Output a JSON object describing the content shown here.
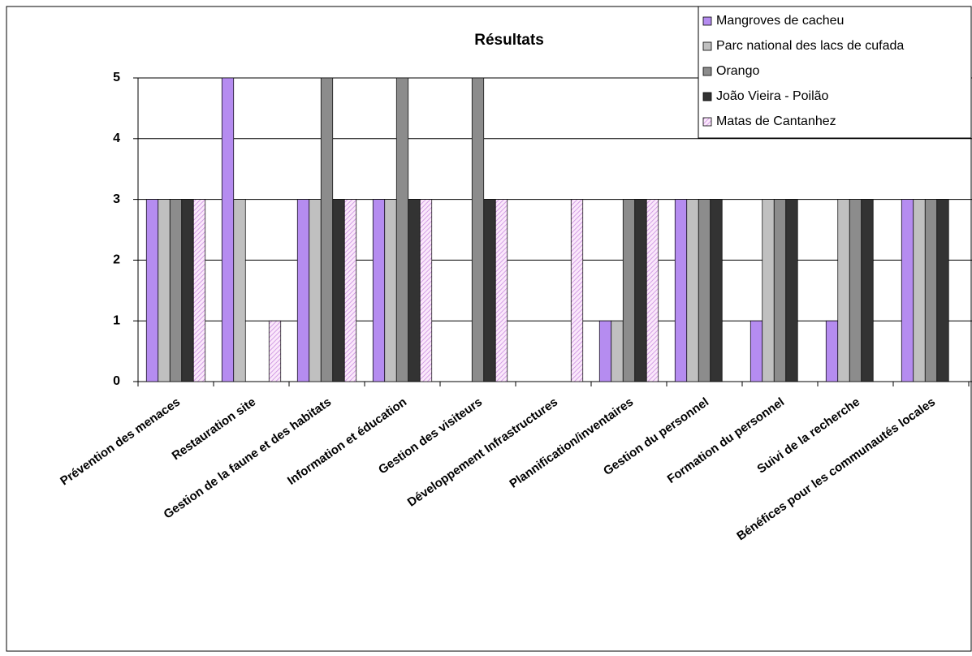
{
  "chart_data": {
    "type": "bar",
    "title": "Résultats",
    "categories": [
      "Prévention des menaces",
      "Restauration site",
      "Gestion de la faune et des habitats",
      "Information et éducation",
      "Gestion des visiteurs",
      "Développement Infrastructures",
      "Plannification/inventaires",
      "Gestion du personnel",
      "Formation du personnel",
      "Suivi de la recherche",
      "Bénéfices pour les communautés locales"
    ],
    "series": [
      {
        "name": "Mangroves de cacheu",
        "color": "#b58cf0",
        "values": [
          3,
          5,
          3,
          3,
          0,
          0,
          1,
          3,
          1,
          1,
          3
        ]
      },
      {
        "name": "Parc national des lacs de cufada",
        "color": "#c0c0c0",
        "values": [
          3,
          3,
          3,
          3,
          0,
          0,
          1,
          3,
          3,
          3,
          3
        ]
      },
      {
        "name": "Orango",
        "color": "#8c8c8c",
        "values": [
          3,
          0,
          5,
          5,
          5,
          0,
          3,
          3,
          3,
          3,
          3
        ]
      },
      {
        "name": "João Vieira - Poilão",
        "color": "#333333",
        "values": [
          3,
          0,
          3,
          3,
          3,
          0,
          3,
          3,
          3,
          3,
          3
        ]
      },
      {
        "name": "Matas de Cantanhez",
        "color": "#c98ee0",
        "hatch": true,
        "values": [
          3,
          1,
          3,
          3,
          3,
          3,
          3,
          0,
          0,
          0,
          0
        ]
      }
    ],
    "ylim": [
      0,
      5
    ],
    "yticks": [
      0,
      1,
      2,
      3,
      4,
      5
    ],
    "grid": true,
    "legend": "top-right"
  }
}
